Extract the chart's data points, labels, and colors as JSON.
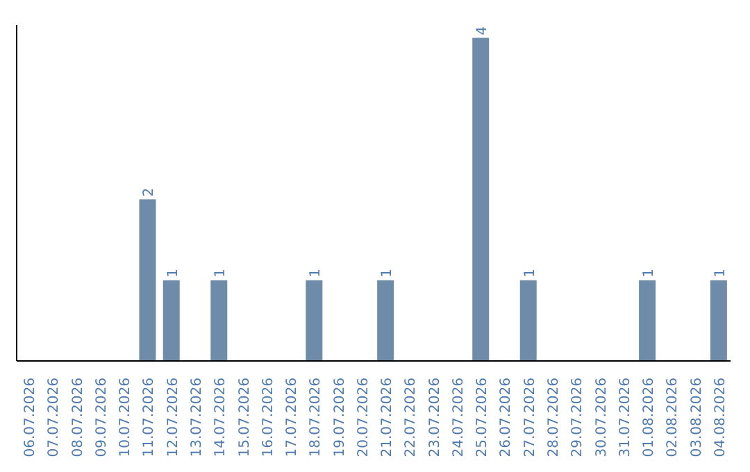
{
  "chart_data": {
    "type": "bar",
    "categories": [
      "06.07.2026",
      "07.07.2026",
      "08.07.2026",
      "09.07.2026",
      "10.07.2026",
      "11.07.2026",
      "12.07.2026",
      "13.07.2026",
      "14.07.2026",
      "15.07.2026",
      "16.07.2026",
      "17.07.2026",
      "18.07.2026",
      "19.07.2026",
      "20.07.2026",
      "21.07.2026",
      "22.07.2026",
      "23.07.2026",
      "24.07.2026",
      "25.07.2026",
      "26.07.2026",
      "27.07.2026",
      "28.07.2026",
      "29.07.2026",
      "30.07.2026",
      "31.07.2026",
      "01.08.2026",
      "02.08.2026",
      "03.08.2026",
      "04.08.2026"
    ],
    "values": [
      0,
      0,
      0,
      0,
      0,
      2,
      1,
      0,
      1,
      0,
      0,
      0,
      1,
      0,
      0,
      1,
      0,
      0,
      0,
      4,
      0,
      1,
      0,
      0,
      0,
      0,
      1,
      0,
      0,
      1
    ],
    "value_labels": [
      null,
      null,
      null,
      null,
      null,
      "2",
      "1",
      null,
      "1",
      null,
      null,
      null,
      "1",
      null,
      null,
      "1",
      null,
      null,
      null,
      "4",
      null,
      "1",
      null,
      null,
      null,
      null,
      "1",
      null,
      null,
      "1"
    ],
    "color": "#6e8caa",
    "grid": false,
    "tick_labels": "x"
  }
}
